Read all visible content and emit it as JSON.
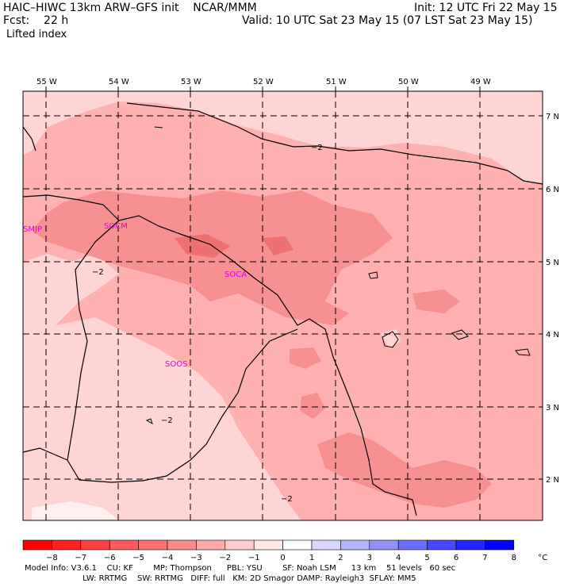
{
  "header": {
    "model_line": "HAIC–HIWC 13km ARW–GFS init    NCAR/MMM",
    "fcst_line": "Fcst:    22 h",
    "field": "Lifted index",
    "init_line": "Init: 12 UTC Fri 22 May 15",
    "valid_line": "Valid: 10 UTC Sat 23 May 15 (07 LST Sat 23 May 15)"
  },
  "map": {
    "lon_labels": [
      "55 W",
      "54 W",
      "53 W",
      "52 W",
      "51 W",
      "50 W",
      "49 W"
    ],
    "lat_labels": [
      "7 N",
      "6 N",
      "5 N",
      "4 N",
      "3 N",
      "2 N"
    ],
    "contour_labels": [
      "−2",
      "−2",
      "−2",
      "−2"
    ],
    "stations": [
      "SMJP",
      "SOCM",
      "SOCA",
      "SOOS"
    ],
    "station_color": "#e600e6",
    "fill_colors": {
      "minus1_0": "#ffd4d4",
      "minus2_minus1": "#ffb0b0",
      "minus3_minus2": "#f79090",
      "minus4_minus3": "#ef7070",
      "light_edge": "#fff0f0"
    }
  },
  "colorbar": {
    "labels": [
      "−8",
      "−7",
      "−6",
      "−5",
      "−4",
      "−3",
      "−2",
      "−1",
      "0",
      "1",
      "2",
      "3",
      "4",
      "5",
      "6",
      "7",
      "8",
      "°C"
    ],
    "colors": [
      "#ff0000",
      "#ff2020",
      "#ff4040",
      "#ff5a5a",
      "#ff7070",
      "#ff8c8c",
      "#ffaaaa",
      "#ffcccc",
      "#ffe8e8",
      "#ffffff",
      "#d8d8ff",
      "#b4b4ff",
      "#9090ff",
      "#6c6cff",
      "#4848ff",
      "#2424ff",
      "#0000ff"
    ]
  },
  "footer": {
    "line1": "Model Info: V3.6.1    CU: KF        MP: Thompson      PBL: YSU        SF: Noah LSM      13 km    51 levels   60 sec",
    "line2": "                       LW: RRTMG    SW: RRTMG   DIFF: full   KM: 2D Smagor DAMP: Rayleigh3  SFLAY: MM5"
  }
}
